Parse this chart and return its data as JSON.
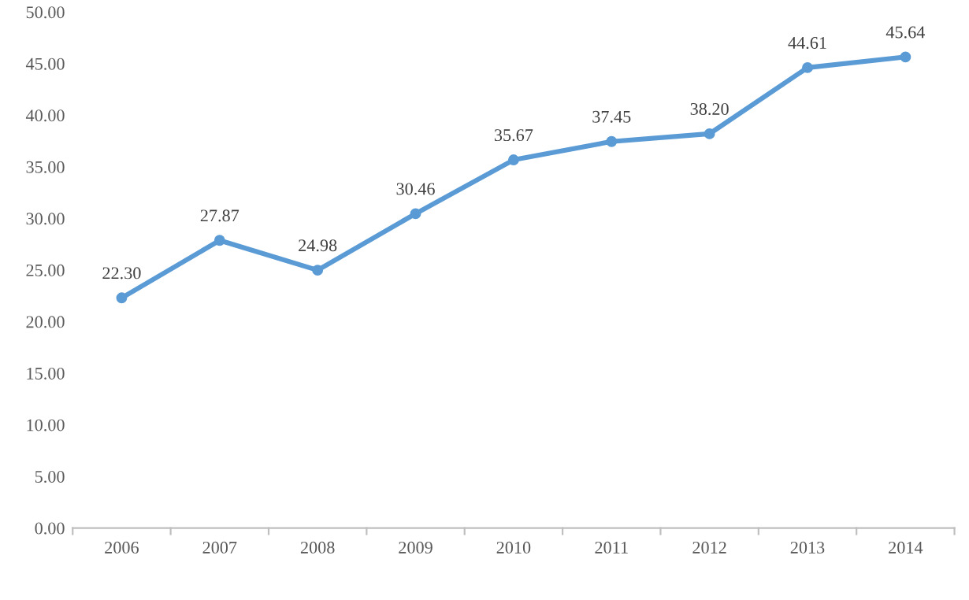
{
  "chart_data": {
    "type": "line",
    "categories": [
      "2006",
      "2007",
      "2008",
      "2009",
      "2010",
      "2011",
      "2012",
      "2013",
      "2014"
    ],
    "series": [
      {
        "color": "#5b9bd5",
        "values": [
          22.3,
          27.87,
          24.98,
          30.46,
          35.67,
          37.45,
          38.2,
          44.61,
          45.64
        ],
        "value_labels": [
          "22.30",
          "27.87",
          "24.98",
          "30.46",
          "35.67",
          "37.45",
          "38.20",
          "44.61",
          "45.64"
        ]
      }
    ],
    "ylim": [
      0,
      50
    ],
    "yticks": [
      {
        "value": 0,
        "label": "0.00"
      },
      {
        "value": 5,
        "label": "5.00"
      },
      {
        "value": 10,
        "label": "10.00"
      },
      {
        "value": 15,
        "label": "15.00"
      },
      {
        "value": 20,
        "label": "20.00"
      },
      {
        "value": 25,
        "label": "25.00"
      },
      {
        "value": 30,
        "label": "30.00"
      },
      {
        "value": 35,
        "label": "35.00"
      },
      {
        "value": 40,
        "label": "40.00"
      },
      {
        "value": 45,
        "label": "45.00"
      },
      {
        "value": 50,
        "label": "50.00"
      }
    ],
    "marker": "circle",
    "line_style": "solid",
    "grid": false,
    "legend": false
  }
}
